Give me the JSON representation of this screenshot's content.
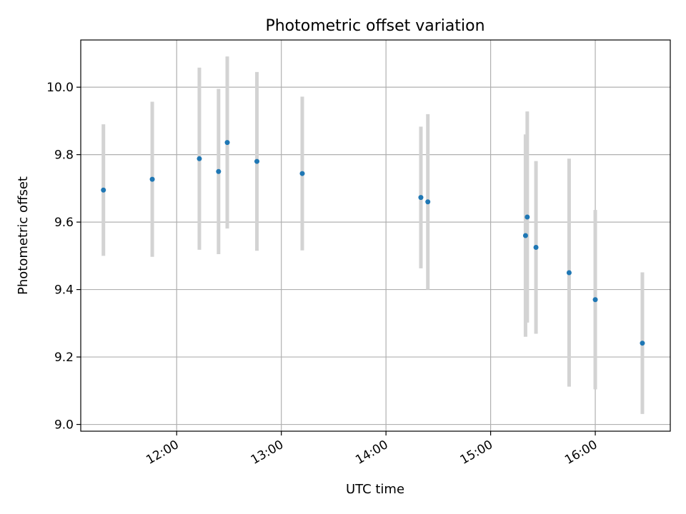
{
  "chart_data": {
    "type": "scatter",
    "title": "Photometric offset variation",
    "xlabel": "UTC time",
    "ylabel": "Photometric offset",
    "x_tick_labels": [
      "12:00",
      "13:00",
      "14:00",
      "15:00",
      "16:00"
    ],
    "x_tick_values": [
      "12:00",
      "13:00",
      "14:00",
      "15:00",
      "16:00"
    ],
    "y_tick_labels": [
      "9.0",
      "9.2",
      "9.4",
      "9.6",
      "9.8",
      "10.0"
    ],
    "y_tick_values": [
      9.0,
      9.2,
      9.4,
      9.6,
      9.8,
      10.0
    ],
    "xlim": [
      "11:05",
      "16:43"
    ],
    "ylim": [
      8.98,
      10.14
    ],
    "grid": true,
    "legend": "none",
    "error_bar_color": "#d3d3d3",
    "point_color": "#1f77b4",
    "points": [
      {
        "x": "11:18",
        "y": 9.695,
        "err": 0.195
      },
      {
        "x": "11:46",
        "y": 9.727,
        "err": 0.23
      },
      {
        "x": "12:13",
        "y": 9.788,
        "err": 0.27
      },
      {
        "x": "12:24",
        "y": 9.75,
        "err": 0.245
      },
      {
        "x": "12:29",
        "y": 9.836,
        "err": 0.255
      },
      {
        "x": "12:46",
        "y": 9.78,
        "err": 0.265
      },
      {
        "x": "13:12",
        "y": 9.744,
        "err": 0.228
      },
      {
        "x": "14:20",
        "y": 9.673,
        "err": 0.21
      },
      {
        "x": "14:24",
        "y": 9.66,
        "err": 0.26
      },
      {
        "x": "15:20",
        "y": 9.56,
        "err": 0.3
      },
      {
        "x": "15:21",
        "y": 9.615,
        "err": 0.313
      },
      {
        "x": "15:26",
        "y": 9.525,
        "err": 0.256
      },
      {
        "x": "15:45",
        "y": 9.45,
        "err": 0.338
      },
      {
        "x": "16:00",
        "y": 9.37,
        "err": 0.266
      },
      {
        "x": "16:27",
        "y": 9.241,
        "err": 0.21
      }
    ]
  }
}
